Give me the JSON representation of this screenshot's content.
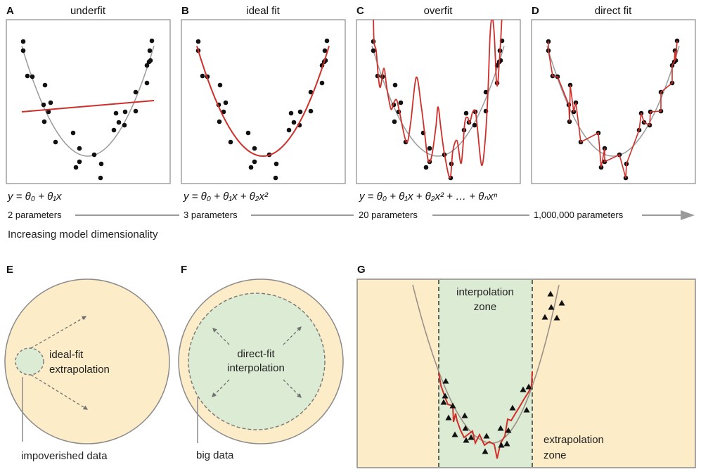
{
  "colors": {
    "fit_red": "#cf2f2a",
    "true_curve_gray": "#9a9a9a",
    "extrapolation_yellow": "#fdecc8",
    "interpolation_green": "#dcebd3",
    "border_gray": "#8a8a8a"
  },
  "panels": [
    {
      "letter": "A",
      "title": "underfit",
      "equation": "y = θ₀ + θ₁x",
      "parameters": "2 parameters"
    },
    {
      "letter": "B",
      "title": "ideal fit",
      "equation": "y = θ₀ + θ₁x + θ₂x²",
      "parameters": "3 parameters"
    },
    {
      "letter": "C",
      "title": "overfit",
      "equation": "y = θ₀ + θ₁x + θ₂x² + … + θₙxⁿ",
      "parameters": "20 parameters"
    },
    {
      "letter": "D",
      "title": "direct fit",
      "parameters": "1,000,000 parameters"
    }
  ],
  "axis_caption": "Increasing model dimensionality",
  "panel_e": {
    "letter": "E",
    "label_line1": "ideal-fit",
    "label_line2": "extrapolation",
    "callout": "impoverished data"
  },
  "panel_f": {
    "letter": "F",
    "label_line1": "direct-fit",
    "label_line2": "interpolation",
    "callout": "big data"
  },
  "panel_g": {
    "letter": "G",
    "interp_line1": "interpolation",
    "interp_line2": "zone",
    "extrap_line1": "extrapolation",
    "extrap_line2": "zone"
  }
}
